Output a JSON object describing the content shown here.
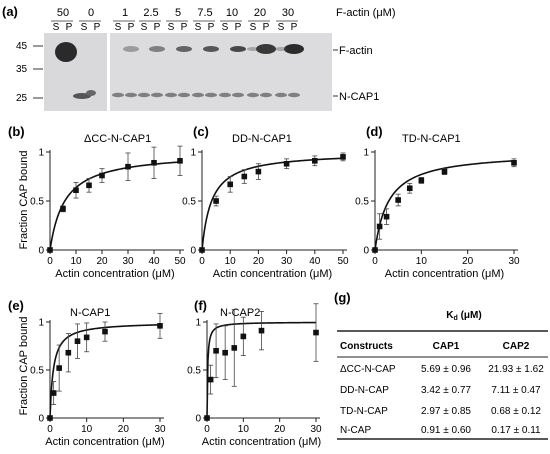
{
  "gel": {
    "panel_label": "(a)",
    "unit_label": "F-actin (μM)",
    "concentrations": [
      "50",
      "0",
      "1",
      "2.5",
      "5",
      "7.5",
      "10",
      "20",
      "30"
    ],
    "lane_s": "S",
    "lane_p": "P",
    "mw_markers": [
      "45",
      "35",
      "25"
    ],
    "band_labels": [
      "F-actin",
      "N-CAP1"
    ]
  },
  "axis_text": {
    "ylabel": "Fraction CAP bound",
    "xlabel": "Actin concentration (μM)"
  },
  "chart_data": [
    {
      "type": "scatter",
      "panel": "(b)",
      "title": "ΔCC-N-CAP1",
      "xlabel": "Actin concentration (μM)",
      "ylabel": "Fraction CAP bound",
      "xlim": [
        0,
        50
      ],
      "ylim": [
        0,
        1
      ],
      "xticks": [
        0,
        10,
        20,
        30,
        40,
        50
      ],
      "yticks": [
        0,
        0.5,
        1
      ],
      "x": [
        0,
        5,
        10,
        15,
        20,
        30,
        40,
        50
      ],
      "y": [
        0,
        0.42,
        0.61,
        0.66,
        0.76,
        0.85,
        0.89,
        0.91
      ],
      "err": [
        0,
        0.03,
        0.08,
        0.07,
        0.07,
        0.14,
        0.16,
        0.15
      ],
      "fit": {
        "model": "hyperbolic",
        "kd": 5.69,
        "bmax": 1.0
      }
    },
    {
      "type": "scatter",
      "panel": "(c)",
      "title": "DD-N-CAP1",
      "xlabel": "Actin concentration (μM)",
      "ylabel": "Fraction CAP bound",
      "xlim": [
        0,
        50
      ],
      "ylim": [
        0,
        1
      ],
      "xticks": [
        0,
        10,
        20,
        30,
        40,
        50
      ],
      "yticks": [
        0,
        0.5,
        1
      ],
      "x": [
        0,
        5,
        10,
        15,
        20,
        30,
        40,
        50
      ],
      "y": [
        0,
        0.5,
        0.67,
        0.75,
        0.8,
        0.88,
        0.91,
        0.95
      ],
      "err": [
        0,
        0.05,
        0.08,
        0.07,
        0.08,
        0.05,
        0.05,
        0.04
      ],
      "fit": {
        "model": "hyperbolic",
        "kd": 3.42,
        "bmax": 1.0
      }
    },
    {
      "type": "scatter",
      "panel": "(d)",
      "title": "TD-N-CAP1",
      "xlabel": "Actin concentration (μM)",
      "ylabel": "",
      "xlim": [
        0,
        30
      ],
      "ylim": [
        0,
        1
      ],
      "xticks": [
        0,
        10,
        20,
        30
      ],
      "yticks": [
        0,
        0.5,
        1
      ],
      "x": [
        0,
        1,
        2.5,
        5,
        7.5,
        10,
        15,
        30
      ],
      "y": [
        0,
        0.24,
        0.34,
        0.51,
        0.63,
        0.71,
        0.8,
        0.89
      ],
      "err": [
        0,
        0.13,
        0.08,
        0.06,
        0.05,
        0.03,
        0.03,
        0.04
      ],
      "fit": {
        "model": "hyperbolic",
        "kd": 2.97,
        "bmax": 1.0
      }
    },
    {
      "type": "scatter",
      "panel": "(e)",
      "title": "N-CAP1",
      "xlabel": "Actin concentration (μM)",
      "ylabel": "Fraction CAP bound",
      "xlim": [
        0,
        30
      ],
      "ylim": [
        0,
        1
      ],
      "xticks": [
        0,
        10,
        20,
        30
      ],
      "yticks": [
        0,
        0.5,
        1
      ],
      "x": [
        0,
        1,
        2.5,
        5,
        7.5,
        10,
        15,
        30
      ],
      "y": [
        0,
        0.26,
        0.52,
        0.68,
        0.8,
        0.84,
        0.9,
        0.96
      ],
      "err": [
        0,
        0.12,
        0.24,
        0.2,
        0.18,
        0.15,
        0.1,
        0.13
      ],
      "fit": {
        "model": "hyperbolic",
        "kd": 0.91,
        "bmax": 1.0
      }
    },
    {
      "type": "scatter",
      "panel": "(f)",
      "title": "N-CAP2",
      "xlabel": "Actin concentration (μM)",
      "ylabel": "",
      "xlim": [
        0,
        30
      ],
      "ylim": [
        0,
        1
      ],
      "xticks": [
        0,
        10,
        20,
        30
      ],
      "yticks": [
        0,
        0.5,
        1
      ],
      "x": [
        0,
        1,
        2.5,
        5,
        7.5,
        10,
        15,
        30
      ],
      "y": [
        0,
        0.4,
        0.7,
        0.68,
        0.73,
        0.85,
        0.91,
        0.89
      ],
      "err": [
        0,
        0.15,
        0.28,
        0.28,
        0.4,
        0.2,
        0.2,
        0.3
      ],
      "fit": {
        "model": "hyperbolic",
        "kd": 0.17,
        "bmax": 1.0
      }
    }
  ],
  "table": {
    "panel_label": "(g)",
    "kd_header_main": "K",
    "kd_header_sub": "d",
    "kd_header_unit": " (μM)",
    "columns": [
      "Constructs",
      "CAP1",
      "CAP2"
    ],
    "rows": [
      [
        "ΔCC-N-CAP",
        "5.69 ± 0.96",
        "21.93 ± 1.62"
      ],
      [
        "DD-N-CAP",
        "3.42 ± 0.77",
        "7.11 ± 0.47"
      ],
      [
        "TD-N-CAP",
        "2.97 ± 0.85",
        "0.68 ± 0.12"
      ],
      [
        "N-CAP",
        "0.91 ± 0.60",
        "0.17 ± 0.11"
      ]
    ]
  }
}
